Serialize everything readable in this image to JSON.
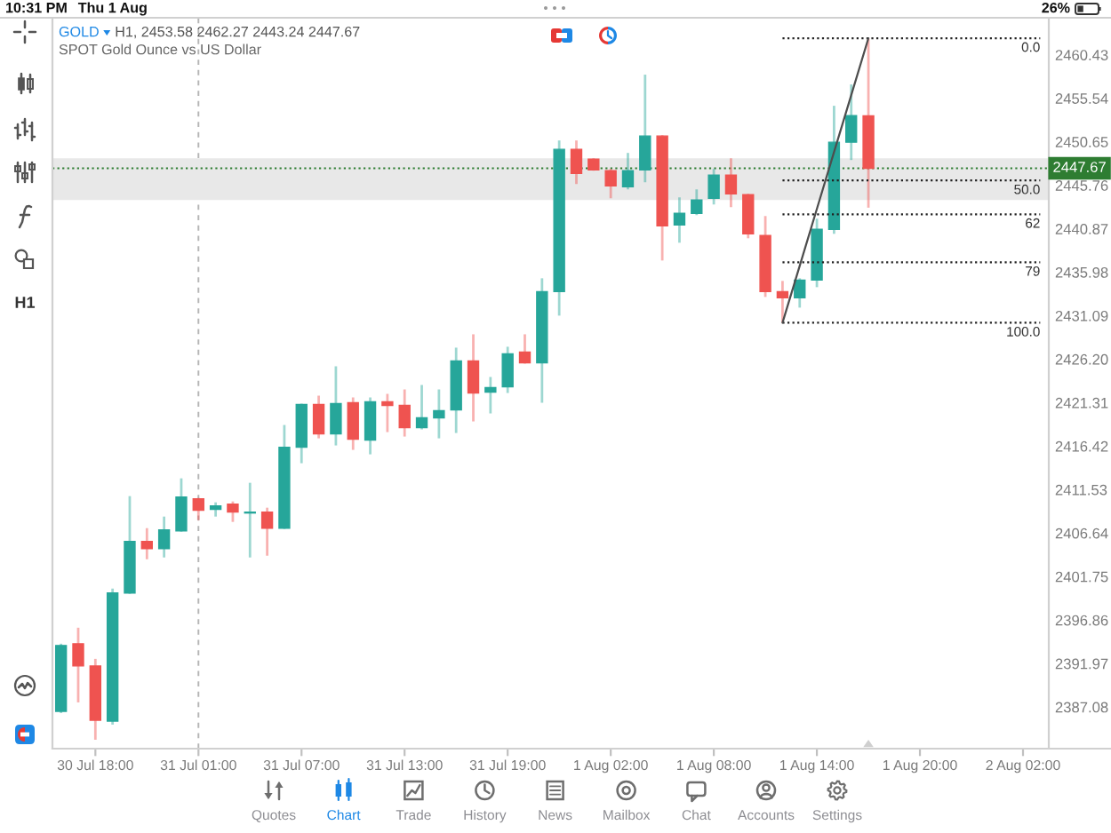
{
  "chart_data": {
    "type": "candlestick",
    "title": "GOLD",
    "subtitle": "SPOT Gold Ounce vs US Dollar",
    "annotations": [
      "H1, 2453.58 2462.27 2443.24 2447.67",
      "10:31 PM",
      "Thu 1 Aug",
      "26%",
      "H1",
      "Quotes",
      "Chart",
      "Trade",
      "History",
      "News",
      "Mailbox",
      "Chat",
      "Accounts",
      "Settings"
    ],
    "categories": [
      null,
      null,
      "30 Jul 18:00",
      null,
      null,
      null,
      null,
      null,
      "31 Jul 01:00",
      null,
      null,
      null,
      null,
      null,
      "31 Jul 07:00",
      null,
      null,
      null,
      null,
      null,
      "31 Jul 13:00",
      null,
      null,
      null,
      null,
      null,
      "31 Jul 19:00",
      null,
      null,
      null,
      null,
      null,
      "1 Aug 02:00",
      null,
      null,
      null,
      null,
      null,
      "1 Aug 08:00",
      null,
      null,
      null,
      null,
      null,
      "1 Aug 14:00",
      null,
      null,
      null,
      null,
      null,
      "1 Aug 20:00",
      null,
      null,
      null,
      null,
      null,
      "2 Aug 02:00",
      null
    ],
    "ohlc": [
      [
        2386.6,
        2394.2,
        2386.4,
        2394.0
      ],
      [
        2394.2,
        2396.0,
        2387.6,
        2391.7
      ],
      [
        2391.7,
        2392.5,
        2383.4,
        2385.6
      ],
      [
        2385.5,
        2400.4,
        2385.1,
        2399.9
      ],
      [
        2399.9,
        2410.8,
        2399.8,
        2405.7
      ],
      [
        2405.7,
        2407.2,
        2403.7,
        2404.9
      ],
      [
        2404.9,
        2408.5,
        2403.9,
        2407.0
      ],
      [
        2406.9,
        2412.8,
        2406.8,
        2410.7
      ],
      [
        2410.5,
        2410.6,
        2408.1,
        2409.2
      ],
      [
        2409.3,
        2410.1,
        2408.5,
        2409.7
      ],
      [
        2409.9,
        2410.2,
        2407.9,
        2409.0
      ],
      [
        2408.9,
        2412.3,
        2403.9,
        2409.0
      ],
      [
        2409.0,
        2409.5,
        2404.1,
        2407.2
      ],
      [
        2407.2,
        2418.8,
        2407.1,
        2416.3
      ],
      [
        2416.3,
        2421.2,
        2414.5,
        2421.1
      ],
      [
        2421.1,
        2422.1,
        2417.3,
        2417.8
      ],
      [
        2417.8,
        2425.4,
        2416.5,
        2421.2
      ],
      [
        2421.3,
        2421.9,
        2416.0,
        2417.2
      ],
      [
        2417.1,
        2421.9,
        2415.5,
        2421.4
      ],
      [
        2421.4,
        2422.3,
        2418.0,
        2421.0
      ],
      [
        2421.0,
        2422.8,
        2417.5,
        2418.5
      ],
      [
        2418.5,
        2423.3,
        2418.3,
        2419.6
      ],
      [
        2419.6,
        2422.8,
        2417.3,
        2420.4
      ],
      [
        2420.5,
        2427.5,
        2417.9,
        2426.0
      ],
      [
        2426.0,
        2429.0,
        2419.2,
        2422.4
      ],
      [
        2422.5,
        2424.2,
        2420.1,
        2423.0
      ],
      [
        2423.1,
        2427.6,
        2422.4,
        2426.8
      ],
      [
        2427.0,
        2429.0,
        2425.7,
        2425.8
      ],
      [
        2425.8,
        2435.3,
        2421.3,
        2433.8
      ],
      [
        2433.8,
        2450.8,
        2431.1,
        2449.8
      ],
      [
        2449.8,
        2450.8,
        2445.9,
        2447.1
      ],
      [
        2448.7,
        2448.8,
        2447.4,
        2447.5
      ],
      [
        2447.4,
        2447.6,
        2444.3,
        2445.7
      ],
      [
        2445.6,
        2449.4,
        2445.3,
        2447.4
      ],
      [
        2447.5,
        2458.2,
        2446.1,
        2451.3
      ],
      [
        2451.3,
        2451.4,
        2437.3,
        2441.2
      ],
      [
        2441.3,
        2444.4,
        2439.3,
        2442.6
      ],
      [
        2442.6,
        2445.3,
        2442.4,
        2444.1
      ],
      [
        2444.3,
        2447.6,
        2443.6,
        2446.9
      ],
      [
        2446.9,
        2448.8,
        2443.3,
        2444.8
      ],
      [
        2444.7,
        2444.8,
        2439.8,
        2440.3
      ],
      [
        2440.1,
        2442.3,
        2433.2,
        2433.8
      ],
      [
        2433.8,
        2435.0,
        2430.3,
        2433.1
      ],
      [
        2433.1,
        2435.3,
        2432.0,
        2435.1
      ],
      [
        2435.1,
        2442.0,
        2434.3,
        2440.8
      ],
      [
        2440.8,
        2454.7,
        2440.3,
        2450.6
      ],
      [
        2450.6,
        2457.1,
        2448.6,
        2453.6
      ],
      [
        2453.58,
        2462.27,
        2443.24,
        2447.67
      ],
      null,
      null,
      null,
      null,
      null,
      null,
      null,
      null,
      null,
      null
    ],
    "colors": [
      "#26a69a",
      "#ef5350",
      "#ef5350",
      "#26a69a",
      "#26a69a",
      "#ef5350",
      "#26a69a",
      "#26a69a",
      "#ef5350",
      "#26a69a",
      "#ef5350",
      "#26a69a",
      "#ef5350",
      "#26a69a",
      "#26a69a",
      "#ef5350",
      "#26a69a",
      "#ef5350",
      "#26a69a",
      "#ef5350",
      "#ef5350",
      "#26a69a",
      "#26a69a",
      "#26a69a",
      "#ef5350",
      "#26a69a",
      "#26a69a",
      "#ef5350",
      "#26a69a",
      "#26a69a",
      "#ef5350",
      "#ef5350",
      "#ef5350",
      "#26a69a",
      "#26a69a",
      "#ef5350",
      "#26a69a",
      "#26a69a",
      "#26a69a",
      "#ef5350",
      "#ef5350",
      "#ef5350",
      "#ef5350",
      "#26a69a",
      "#26a69a",
      "#26a69a",
      "#26a69a",
      "#ef5350",
      null,
      null,
      null,
      null,
      null,
      null,
      null,
      null,
      null,
      null
    ],
    "series": [
      {
        "type": "line",
        "name": "0.0",
        "color": "#222222",
        "line_style": "dotted",
        "values": [
          null,
          null,
          null,
          null,
          null,
          null,
          null,
          null,
          null,
          null,
          null,
          null,
          null,
          null,
          null,
          null,
          null,
          null,
          null,
          null,
          null,
          null,
          null,
          null,
          null,
          null,
          null,
          null,
          null,
          null,
          null,
          null,
          null,
          null,
          null,
          null,
          null,
          null,
          null,
          null,
          null,
          null,
          2462.3,
          2462.3,
          2462.3,
          2462.3,
          2462.3,
          2462.3,
          2462.3,
          2462.3,
          2462.3,
          2462.3,
          2462.3,
          2462.3,
          2462.3,
          2462.3,
          2462.3,
          2462.3
        ]
      },
      {
        "type": "line",
        "name": "50.0",
        "color": "#222222",
        "line_style": "dotted",
        "values": [
          null,
          null,
          null,
          null,
          null,
          null,
          null,
          null,
          null,
          null,
          null,
          null,
          null,
          null,
          null,
          null,
          null,
          null,
          null,
          null,
          null,
          null,
          null,
          null,
          null,
          null,
          null,
          null,
          null,
          null,
          null,
          null,
          null,
          null,
          null,
          null,
          null,
          null,
          null,
          null,
          null,
          null,
          2446.3,
          2446.3,
          2446.3,
          2446.3,
          2446.3,
          2446.3,
          2446.3,
          2446.3,
          2446.3,
          2446.3,
          2446.3,
          2446.3,
          2446.3,
          2446.3,
          2446.3,
          2446.3
        ]
      },
      {
        "type": "line",
        "name": "62",
        "color": "#222222",
        "line_style": "dotted",
        "values": [
          null,
          null,
          null,
          null,
          null,
          null,
          null,
          null,
          null,
          null,
          null,
          null,
          null,
          null,
          null,
          null,
          null,
          null,
          null,
          null,
          null,
          null,
          null,
          null,
          null,
          null,
          null,
          null,
          null,
          null,
          null,
          null,
          null,
          null,
          null,
          null,
          null,
          null,
          null,
          null,
          null,
          null,
          2442.5,
          2442.5,
          2442.5,
          2442.5,
          2442.5,
          2442.5,
          2442.5,
          2442.5,
          2442.5,
          2442.5,
          2442.5,
          2442.5,
          2442.5,
          2442.5,
          2442.5,
          2442.5
        ]
      },
      {
        "type": "line",
        "name": "79",
        "color": "#222222",
        "line_style": "dotted",
        "values": [
          null,
          null,
          null,
          null,
          null,
          null,
          null,
          null,
          null,
          null,
          null,
          null,
          null,
          null,
          null,
          null,
          null,
          null,
          null,
          null,
          null,
          null,
          null,
          null,
          null,
          null,
          null,
          null,
          null,
          null,
          null,
          null,
          null,
          null,
          null,
          null,
          null,
          null,
          null,
          null,
          null,
          null,
          2437.1,
          2437.1,
          2437.1,
          2437.1,
          2437.1,
          2437.1,
          2437.1,
          2437.1,
          2437.1,
          2437.1,
          2437.1,
          2437.1,
          2437.1,
          2437.1,
          2437.1,
          2437.1
        ]
      },
      {
        "type": "line",
        "name": "100.0",
        "color": "#222222",
        "line_style": "dotted",
        "values": [
          null,
          null,
          null,
          null,
          null,
          null,
          null,
          null,
          null,
          null,
          null,
          null,
          null,
          null,
          null,
          null,
          null,
          null,
          null,
          null,
          null,
          null,
          null,
          null,
          null,
          null,
          null,
          null,
          null,
          null,
          null,
          null,
          null,
          null,
          null,
          null,
          null,
          null,
          null,
          null,
          null,
          null,
          2430.3,
          2430.3,
          2430.3,
          2430.3,
          2430.3,
          2430.3,
          2430.3,
          2430.3,
          2430.3,
          2430.3,
          2430.3,
          2430.3,
          2430.3,
          2430.3,
          2430.3,
          2430.3
        ]
      },
      {
        "type": "line",
        "color": "#4d4d4d",
        "line_style": "solid",
        "values": [
          null,
          null,
          null,
          null,
          null,
          null,
          null,
          null,
          null,
          null,
          null,
          null,
          null,
          null,
          null,
          null,
          null,
          null,
          null,
          null,
          null,
          null,
          null,
          null,
          null,
          null,
          null,
          null,
          null,
          null,
          null,
          null,
          null,
          null,
          null,
          null,
          null,
          null,
          null,
          null,
          null,
          null,
          2430.3,
          2436.7,
          2443.1,
          2449.5,
          2455.9,
          2462.3,
          null,
          null,
          null,
          null,
          null,
          null,
          null,
          null,
          null,
          null
        ]
      }
    ],
    "bands": [
      {
        "axis": "y",
        "from": 2444.1,
        "to": 2448.8,
        "color": "#e8e8e8"
      }
    ],
    "ref_lines": [
      {
        "axis": "y",
        "value": 2447.67,
        "label": "2447.67",
        "color": "#2e7d32",
        "line_style": "dotted"
      },
      {
        "axis": "x",
        "value": "31 Jul 01:00",
        "color": "#b5b5b5",
        "line_style": "dashed"
      }
    ],
    "ylim": [
      2382.4,
      2464.6
    ],
    "yticks": [
      2387.08,
      2391.97,
      2396.86,
      2401.75,
      2406.64,
      2411.53,
      2416.42,
      2421.31,
      {
        "value": 2426.2,
        "label": "2426.20"
      },
      2431.09,
      2435.98,
      2440.87,
      2445.76,
      2450.65,
      2455.54,
      2460.43
    ]
  }
}
